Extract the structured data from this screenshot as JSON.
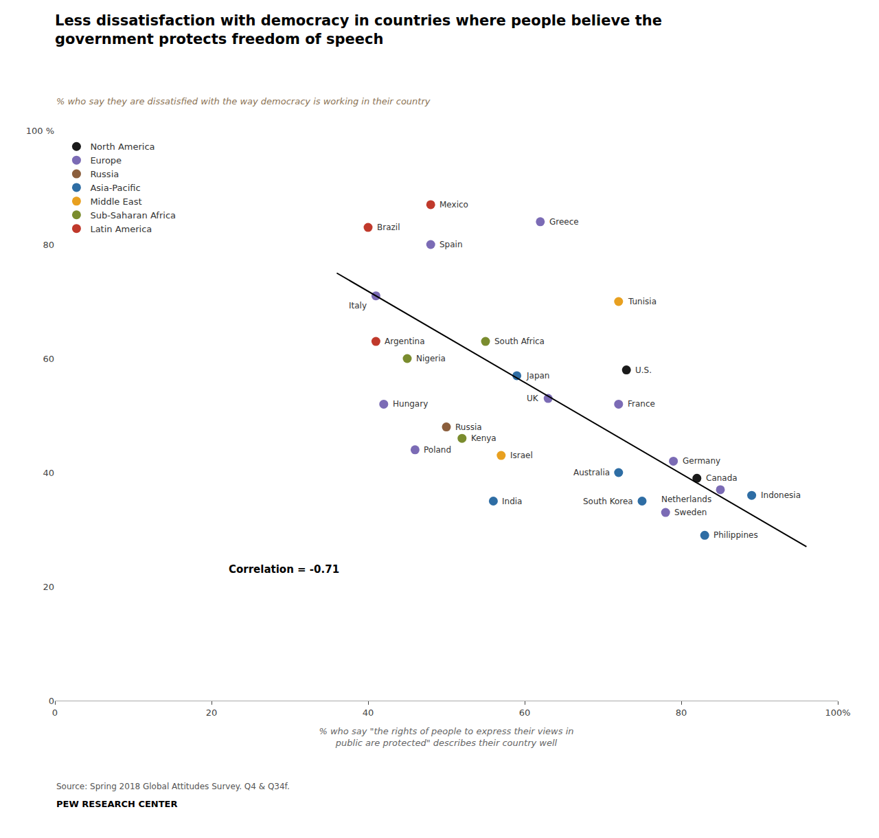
{
  "chart_data": {
    "type": "scatter",
    "title": "Less dissatisfaction with democracy in countries where people believe the\ngovernment protects freedom of speech",
    "subtitle": "% who say they are dissatisfied with the way democracy is working in their country",
    "xlabel": "% who say \"the rights of people to express their views in\npublic are protected\" describes their country well",
    "source": "Source: Spring 2018 Global Attitudes Survey. Q4 & Q34f.",
    "branding": "PEW RESEARCH CENTER",
    "annotations": [
      "Correlation = -0.71"
    ],
    "series": [
      {
        "name": "North America",
        "color": "#1a1a1a",
        "labels": [
          "U.S.",
          "Canada"
        ],
        "x": [
          73,
          82
        ],
        "values": [
          58,
          39
        ]
      },
      {
        "name": "Europe",
        "color": "#7B6BB5",
        "labels": [
          "Greece",
          "Spain",
          "Italy",
          "UK",
          "France",
          "Hungary",
          "Poland",
          "Germany",
          "Netherlands",
          "Sweden"
        ],
        "x": [
          62,
          48,
          41,
          63,
          72,
          42,
          46,
          79,
          85,
          78
        ],
        "values": [
          84,
          80,
          71,
          53,
          52,
          52,
          44,
          42,
          37,
          33
        ]
      },
      {
        "name": "Russia",
        "color": "#8B5E3C",
        "labels": [
          "Russia"
        ],
        "x": [
          50
        ],
        "values": [
          48
        ]
      },
      {
        "name": "Asia-Pacific",
        "color": "#2E6DA4",
        "labels": [
          "Japan",
          "Australia",
          "Indonesia",
          "India",
          "South Korea",
          "Philippines"
        ],
        "x": [
          59,
          72,
          89,
          56,
          75,
          83
        ],
        "values": [
          57,
          40,
          36,
          35,
          35,
          29
        ]
      },
      {
        "name": "Middle East",
        "color": "#E8A020",
        "labels": [
          "Tunisia",
          "Israel"
        ],
        "x": [
          72,
          57
        ],
        "values": [
          70,
          43
        ]
      },
      {
        "name": "Sub-Saharan Africa",
        "color": "#7A8C2E",
        "labels": [
          "South Africa",
          "Nigeria",
          "Kenya"
        ],
        "x": [
          55,
          45,
          52
        ],
        "values": [
          63,
          60,
          46
        ]
      },
      {
        "name": "Latin America",
        "color": "#C0392B",
        "labels": [
          "Brazil",
          "Mexico",
          "Argentina"
        ],
        "x": [
          40,
          48,
          41
        ],
        "values": [
          83,
          87,
          63
        ]
      }
    ],
    "trend_line": {
      "x": [
        36,
        96
      ],
      "values": [
        75,
        27
      ],
      "color": "#000000"
    },
    "xlim": [
      0,
      100
    ],
    "ylim": [
      0,
      100
    ],
    "xticks": [
      0,
      20,
      40,
      60,
      80,
      {
        "value": 100,
        "label": "100%"
      }
    ],
    "yticks": [
      0,
      20,
      40,
      60,
      80,
      {
        "value": 100,
        "label": "100 %"
      }
    ],
    "grid": false,
    "legend": "upper left",
    "marker": "circle"
  }
}
